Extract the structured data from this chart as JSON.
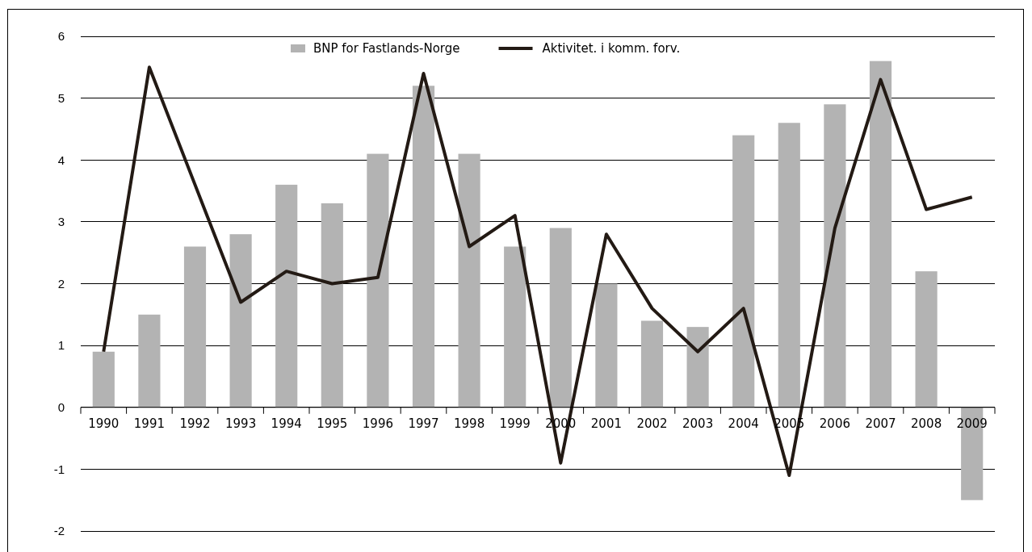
{
  "chart_data": {
    "type": "bar",
    "categories": [
      "1990",
      "1991",
      "1992",
      "1993",
      "1994",
      "1995",
      "1996",
      "1997",
      "1998",
      "1999",
      "2000",
      "2001",
      "2002",
      "2003",
      "2004",
      "2005",
      "2006",
      "2007",
      "2008",
      "2009"
    ],
    "series": [
      {
        "name": "BNP for Fastlands-Norge",
        "color": "#b3b3b3",
        "values": [
          0.9,
          1.5,
          2.6,
          2.8,
          3.6,
          3.3,
          4.1,
          5.2,
          4.1,
          2.6,
          2.9,
          2.0,
          1.4,
          1.3,
          4.4,
          4.6,
          4.9,
          5.6,
          2.2,
          -1.5
        ]
      },
      {
        "name": "Aktivitet. i komm. forv.",
        "type": "line",
        "color": "#231a14",
        "values": [
          0.9,
          5.5,
          3.6,
          1.7,
          2.2,
          2.0,
          2.1,
          5.4,
          2.6,
          3.1,
          -0.9,
          2.8,
          1.6,
          0.9,
          1.6,
          -1.1,
          2.9,
          5.3,
          3.2,
          3.4
        ]
      }
    ],
    "ylim": [
      -2,
      6
    ],
    "yticks": [
      -2,
      -1,
      0,
      1,
      2,
      3,
      4,
      5,
      6
    ],
    "grid": "y",
    "legend": "top",
    "marker": "none",
    "line_style": "solid"
  }
}
